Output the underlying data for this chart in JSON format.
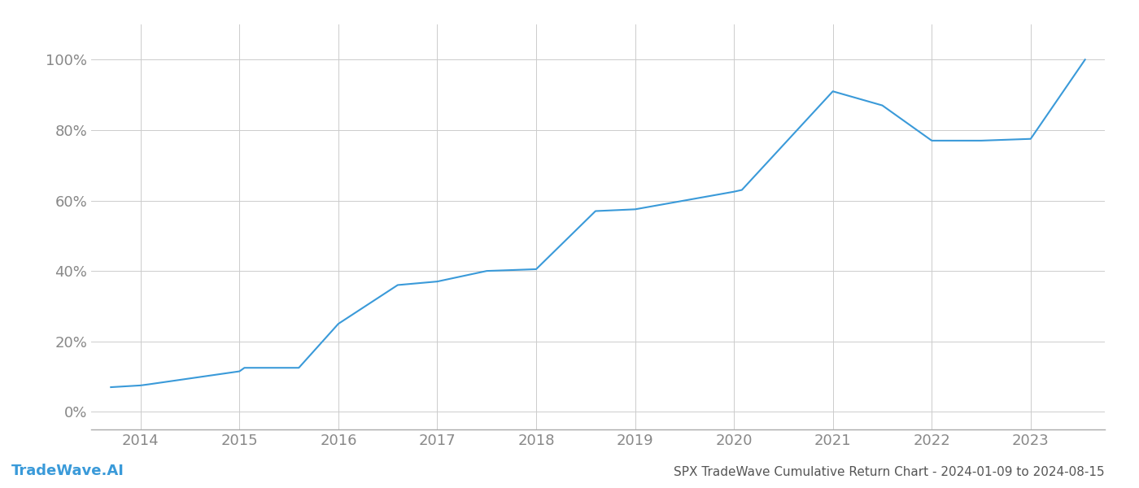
{
  "title": "SPX TradeWave Cumulative Return Chart - 2024-01-09 to 2024-08-15",
  "watermark": "TradeWave.AI",
  "line_color": "#3a9ad9",
  "background_color": "#ffffff",
  "grid_color": "#cccccc",
  "x_values": [
    2013.7,
    2014.0,
    2014.08,
    2015.0,
    2015.05,
    2015.6,
    2016.0,
    2016.6,
    2017.0,
    2017.5,
    2018.0,
    2018.6,
    2019.0,
    2019.5,
    2020.0,
    2020.08,
    2021.0,
    2021.5,
    2022.0,
    2022.5,
    2023.0,
    2023.55
  ],
  "y_values": [
    7.0,
    7.5,
    7.8,
    11.5,
    12.5,
    12.5,
    25.0,
    36.0,
    37.0,
    40.0,
    40.5,
    57.0,
    57.5,
    60.0,
    62.5,
    63.0,
    91.0,
    87.0,
    77.0,
    77.0,
    77.5,
    100.0
  ],
  "xlim": [
    2013.5,
    2023.75
  ],
  "ylim": [
    -5,
    110
  ],
  "yticks": [
    0,
    20,
    40,
    60,
    80,
    100
  ],
  "ytick_labels": [
    "0%",
    "20%",
    "40%",
    "60%",
    "80%",
    "100%"
  ],
  "xticks": [
    2014,
    2015,
    2016,
    2017,
    2018,
    2019,
    2020,
    2021,
    2022,
    2023
  ],
  "xtick_labels": [
    "2014",
    "2015",
    "2016",
    "2017",
    "2018",
    "2019",
    "2020",
    "2021",
    "2022",
    "2023"
  ],
  "tick_color": "#888888",
  "title_color": "#555555",
  "watermark_color": "#3a9ad9",
  "line_width": 1.5,
  "title_fontsize": 11,
  "tick_fontsize": 13,
  "watermark_fontsize": 13
}
